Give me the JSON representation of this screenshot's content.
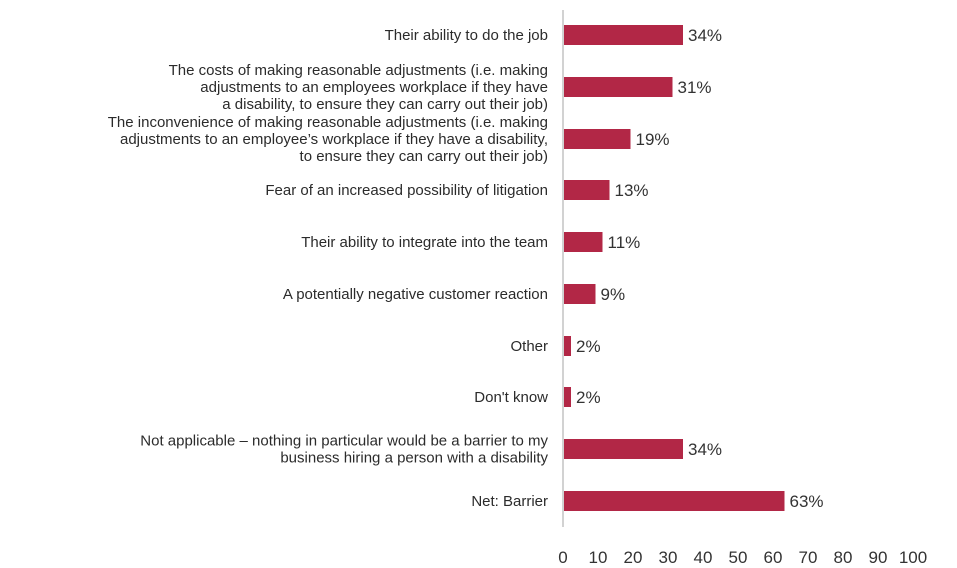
{
  "chart_data": {
    "type": "bar",
    "orientation": "horizontal",
    "categories": [
      [
        "Their ability to do the job"
      ],
      [
        "The costs of making reasonable adjustments (i.e. making",
        "adjustments to an employees workplace if they have",
        "a disability, to ensure they can carry out their job)"
      ],
      [
        "The inconvenience of making reasonable adjustments (i.e. making",
        "adjustments to an employee’s workplace if they have a disability,",
        "to ensure they can carry out their job)"
      ],
      [
        "Fear of an increased possibility of litigation"
      ],
      [
        "Their ability to integrate into the team"
      ],
      [
        "A potentially negative customer reaction"
      ],
      [
        "Other"
      ],
      [
        "Don't know"
      ],
      [
        "Not applicable – nothing in particular would be a barrier to my",
        "business hiring a person with a disability"
      ],
      [
        "Net: Barrier"
      ]
    ],
    "values": [
      34,
      31,
      19,
      13,
      11,
      9,
      2,
      2,
      34,
      63
    ],
    "value_labels": [
      "34%",
      "31%",
      "19%",
      "13%",
      "11%",
      "9%",
      "2%",
      "2%",
      "34%",
      "63%"
    ],
    "xlim": [
      0,
      100
    ],
    "xticks": [
      "0",
      "10",
      "20",
      "30",
      "40",
      "50",
      "60",
      "70",
      "80",
      "90",
      "100"
    ],
    "bar_color": "#b22746",
    "axis_color": "#a6a6a6",
    "grid": false,
    "title": "",
    "xlabel": "",
    "ylabel": ""
  }
}
